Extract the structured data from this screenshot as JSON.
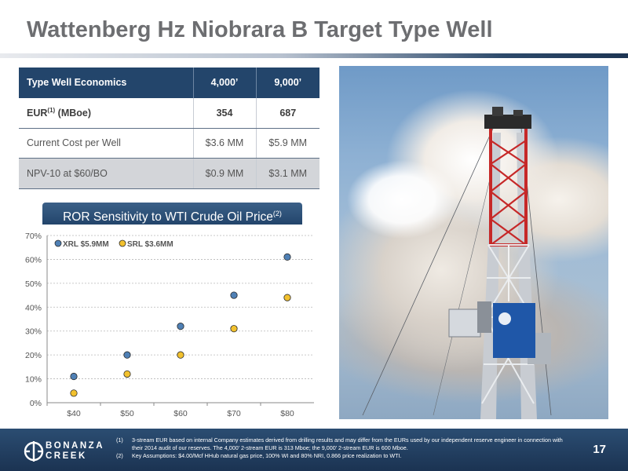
{
  "title": "Wattenberg Hz Niobrara B Target Type Well",
  "table": {
    "header": [
      "Type Well Economics",
      "4,000’",
      "9,000’"
    ],
    "rows": [
      {
        "label": "EUR",
        "label_sup": "(1)",
        "label_suffix": " (MBoe)",
        "a": "354",
        "b": "687"
      },
      {
        "label": "Current Cost per Well",
        "a": "$3.6 MM",
        "b": "$5.9 MM"
      },
      {
        "label": "NPV-10 at $60/BO",
        "a": "$0.9 MM",
        "b": "$3.1 MM"
      }
    ]
  },
  "chart_header": {
    "text": "ROR Sensitivity to WTI Crude Oil Price",
    "sup": "(2)"
  },
  "chart_data": {
    "type": "scatter",
    "categories": [
      "$40",
      "$50",
      "$60",
      "$70",
      "$80"
    ],
    "ylim": [
      0,
      70
    ],
    "y_ticks": [
      "0%",
      "10%",
      "20%",
      "30%",
      "40%",
      "50%",
      "60%",
      "70%"
    ],
    "grid": true,
    "legend_position": "top-left",
    "series": [
      {
        "name": "XRL $5.9MM",
        "color": "#4f80b5",
        "values": [
          11,
          20,
          32,
          45,
          61
        ]
      },
      {
        "name": "SRL $3.6MM",
        "color": "#f2c12e",
        "values": [
          4,
          12,
          20,
          31,
          44
        ]
      }
    ]
  },
  "photo": {
    "sign_icon": "company-logo-sign"
  },
  "footer": {
    "logo_line1": "BONANZA",
    "logo_line2": "CREEK",
    "notes": [
      {
        "num": "(1)",
        "text": "3-stream EUR based on internal Company estimates derived from drilling results and may differ from the EURs used by our independent reserve engineer in connection with their 2014 audit of our reserves. The 4,000’ 2-stream EUR is 313 Mboe; the 9,000’ 2-stream EUR is 600 Mboe."
      },
      {
        "num": "(2)",
        "text": "Key Assumptions: $4.00/Mcf HHub natural gas price, 100% WI and 80% NRI, 0.866 price realization to WTI."
      }
    ],
    "page": "17"
  }
}
